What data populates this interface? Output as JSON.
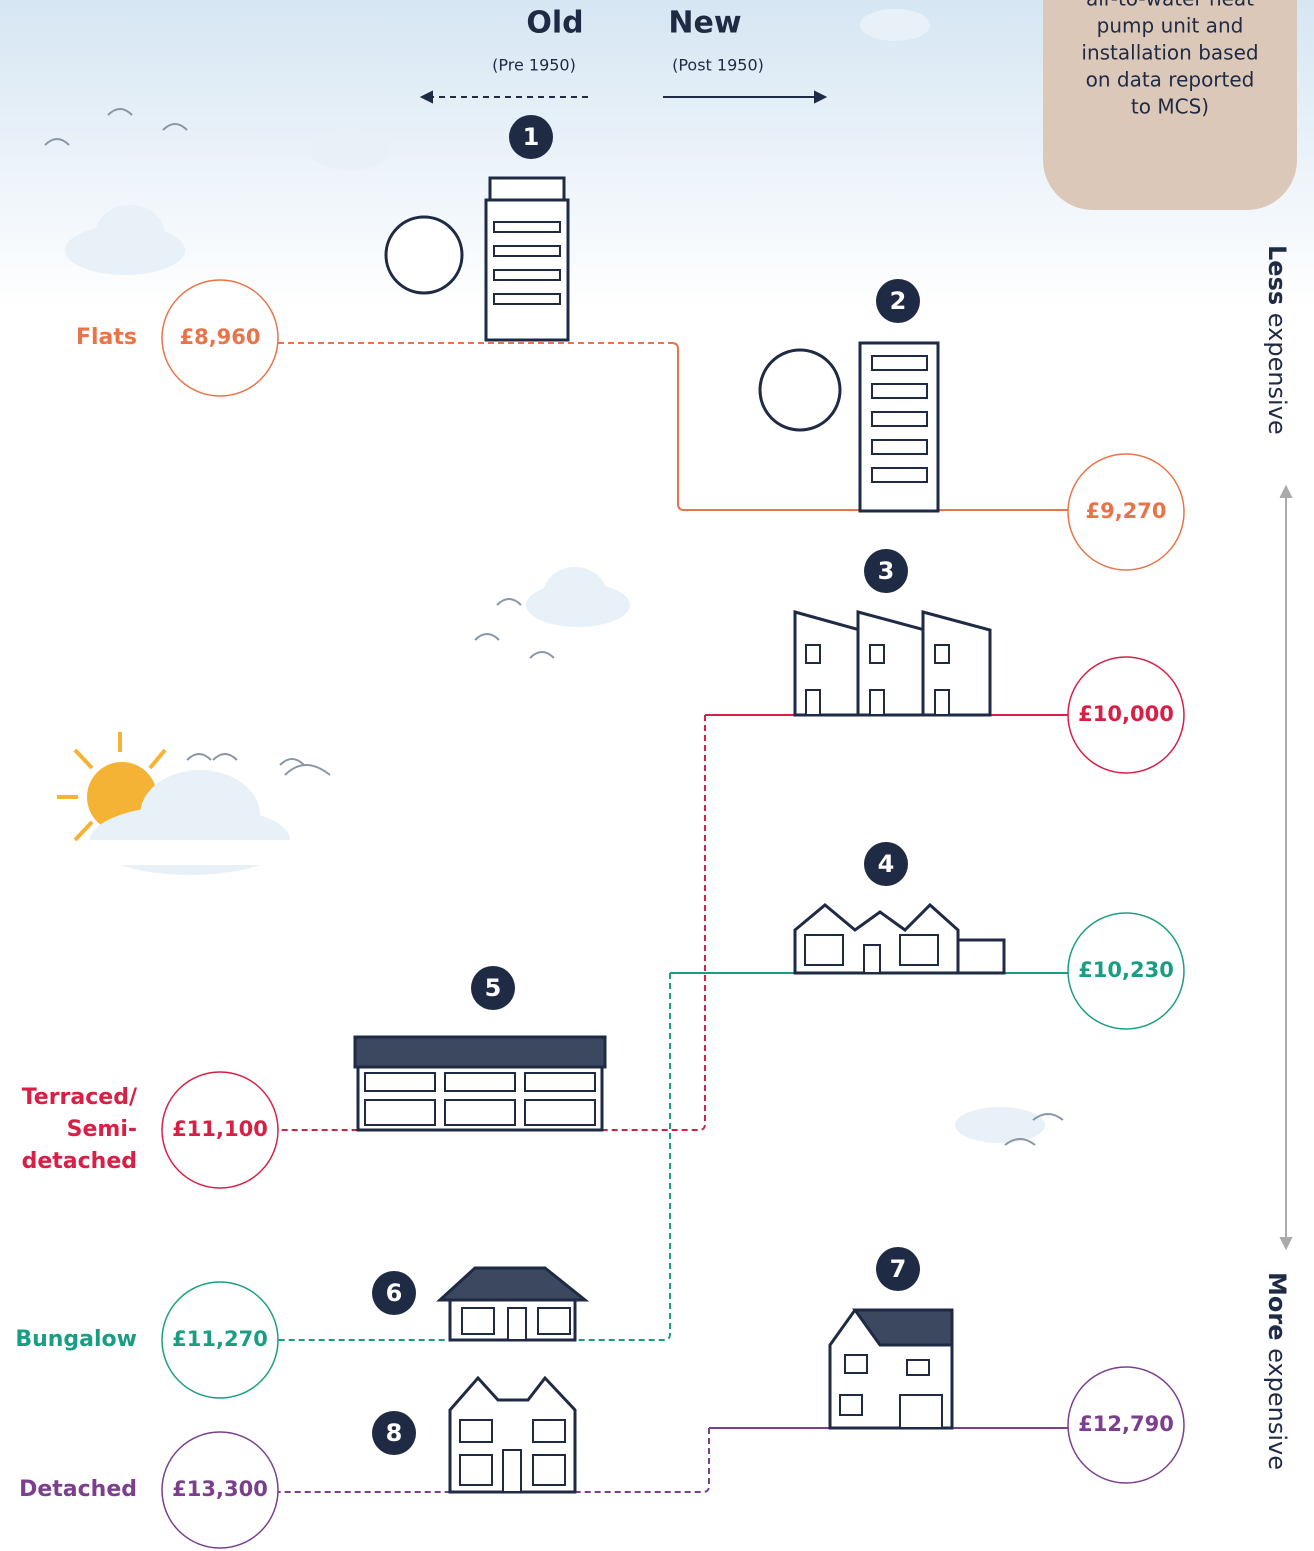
{
  "header": {
    "old": "Old",
    "old_sub": "(Pre 1950)",
    "new": "New",
    "new_sub": "(Post 1950)"
  },
  "note": {
    "lines": [
      "air-to-water heat",
      "pump unit and",
      "installation based",
      "on data reported",
      "to MCS)"
    ]
  },
  "scale": {
    "less_bold": "Less",
    "less_rest": "expensive",
    "more_bold": "More",
    "more_rest": "expensive"
  },
  "homes": [
    {
      "number": "1",
      "price": "£8,960",
      "label": [
        "Flats"
      ]
    },
    {
      "number": "2",
      "price": "£9,270"
    },
    {
      "number": "3",
      "price": "£10,000"
    },
    {
      "number": "4",
      "price": "£10,230"
    },
    {
      "number": "5",
      "price": "£11,100",
      "label": [
        "Terraced/",
        "Semi-",
        "detached"
      ]
    },
    {
      "number": "6",
      "price": "£11,270",
      "label": [
        "Bungalow"
      ]
    },
    {
      "number": "7",
      "price": "£12,790"
    },
    {
      "number": "8",
      "price": "£13,300",
      "label": [
        "Detached"
      ]
    }
  ]
}
